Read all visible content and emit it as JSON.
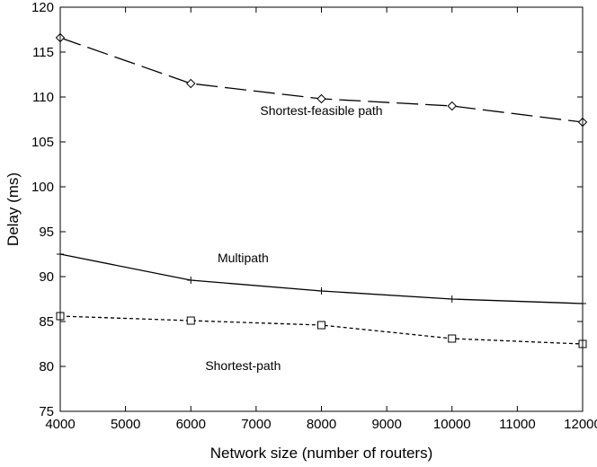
{
  "chart_data": {
    "type": "line",
    "xlabel": "Network size (number of routers)",
    "ylabel": "Delay (ms)",
    "xlim": [
      4000,
      12000
    ],
    "ylim": [
      75,
      120
    ],
    "xticks": [
      4000,
      5000,
      6000,
      7000,
      8000,
      9000,
      10000,
      11000,
      12000
    ],
    "yticks": [
      75,
      80,
      85,
      90,
      95,
      100,
      105,
      110,
      115,
      120
    ],
    "grid": false,
    "series": [
      {
        "name": "Shortest-feasible path",
        "x": [
          4000,
          6000,
          8000,
          10000,
          12000
        ],
        "y": [
          116.6,
          111.5,
          109.8,
          109.0,
          107.2
        ],
        "line_style": "long-dash",
        "marker": "diamond",
        "color": "#000000"
      },
      {
        "name": "Multipath",
        "x": [
          4000,
          6000,
          8000,
          10000,
          12000
        ],
        "y": [
          92.5,
          89.6,
          88.4,
          87.5,
          87.0
        ],
        "line_style": "solid",
        "marker": "plus",
        "color": "#000000"
      },
      {
        "name": "Shortest-path",
        "x": [
          4000,
          6000,
          8000,
          10000,
          12000
        ],
        "y": [
          85.6,
          85.1,
          84.6,
          83.1,
          82.5
        ],
        "line_style": "dotted",
        "marker": "square",
        "color": "#000000"
      }
    ],
    "annotations": [
      {
        "text": "Shortest-feasible path",
        "x": 8000,
        "y": 108.0
      },
      {
        "text": "Multipath",
        "x": 6800,
        "y": 91.6
      },
      {
        "text": "Shortest-path",
        "x": 6800,
        "y": 79.6
      }
    ]
  }
}
